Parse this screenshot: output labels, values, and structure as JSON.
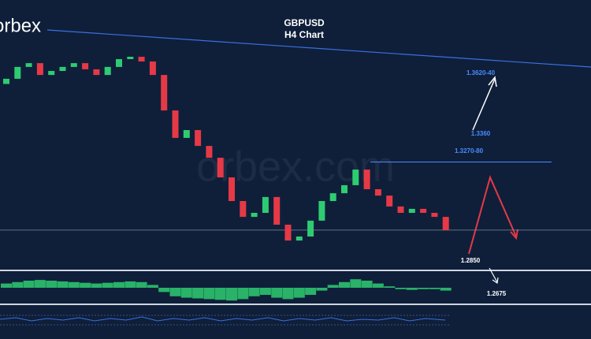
{
  "header": {
    "logo": "orbex",
    "title": "GBPUSD",
    "subtitle": "H4 Chart"
  },
  "watermark": "orbex.com",
  "chart_data": {
    "type": "candlestick",
    "open": [
      1.358,
      1.3602,
      1.3652,
      1.3668,
      1.3618,
      1.3635,
      1.3652,
      1.3668,
      1.3642,
      1.3618,
      1.3652,
      1.3685,
      1.3695,
      1.3675,
      1.3618,
      1.3468,
      1.3352,
      1.3385,
      1.3318,
      1.3268,
      1.3185,
      1.3085,
      1.3018,
      1.3035,
      1.3102,
      1.2985,
      1.2918,
      1.2935,
      1.3002,
      1.3085,
      1.3118,
      1.3152,
      1.3218,
      1.3135,
      1.3108,
      1.3062,
      1.3035,
      1.3052,
      1.3035,
      1.3018
    ],
    "close": [
      1.3602,
      1.3652,
      1.3668,
      1.3618,
      1.3635,
      1.3652,
      1.3668,
      1.3642,
      1.3618,
      1.3652,
      1.3685,
      1.3695,
      1.3675,
      1.3618,
      1.3468,
      1.3352,
      1.3385,
      1.3318,
      1.3268,
      1.3185,
      1.3085,
      1.3018,
      1.3035,
      1.3102,
      1.2985,
      1.2918,
      1.2935,
      1.3002,
      1.3085,
      1.3118,
      1.3152,
      1.3218,
      1.3135,
      1.3108,
      1.3062,
      1.3035,
      1.3052,
      1.3035,
      1.3018,
      1.2962
    ],
    "ylim": [
      1.2785,
      1.3935
    ],
    "up_color": "#2ecc71",
    "down_color": "#e63946",
    "levels": [
      {
        "value": 1.362,
        "label": "1.3620-40",
        "color": "#4a8cff"
      },
      {
        "value": 1.336,
        "label": "1.3360",
        "color": "#4a8cff"
      },
      {
        "value": 1.327,
        "label": "1.3270-80",
        "color": "#4a8cff"
      },
      {
        "value": 1.285,
        "label": "1.2850",
        "color": "#ffffff"
      },
      {
        "value": 1.2675,
        "label": "1.2675",
        "color": "#ffffff"
      }
    ],
    "oscillator": {
      "values": [
        0.3,
        0.4,
        0.5,
        0.55,
        0.5,
        0.45,
        0.4,
        0.35,
        0.3,
        0.35,
        0.4,
        0.45,
        0.4,
        0.2,
        -0.3,
        -0.6,
        -0.7,
        -0.75,
        -0.8,
        -0.85,
        -0.9,
        -0.8,
        -0.6,
        -0.5,
        -0.7,
        -0.8,
        -0.7,
        -0.5,
        -0.2,
        0.2,
        0.4,
        0.6,
        0.5,
        0.3,
        0.1,
        -0.1,
        -0.15,
        -0.1,
        -0.1,
        -0.2
      ],
      "ylim": [
        -1,
        1
      ],
      "color": "#2ecc71"
    }
  }
}
